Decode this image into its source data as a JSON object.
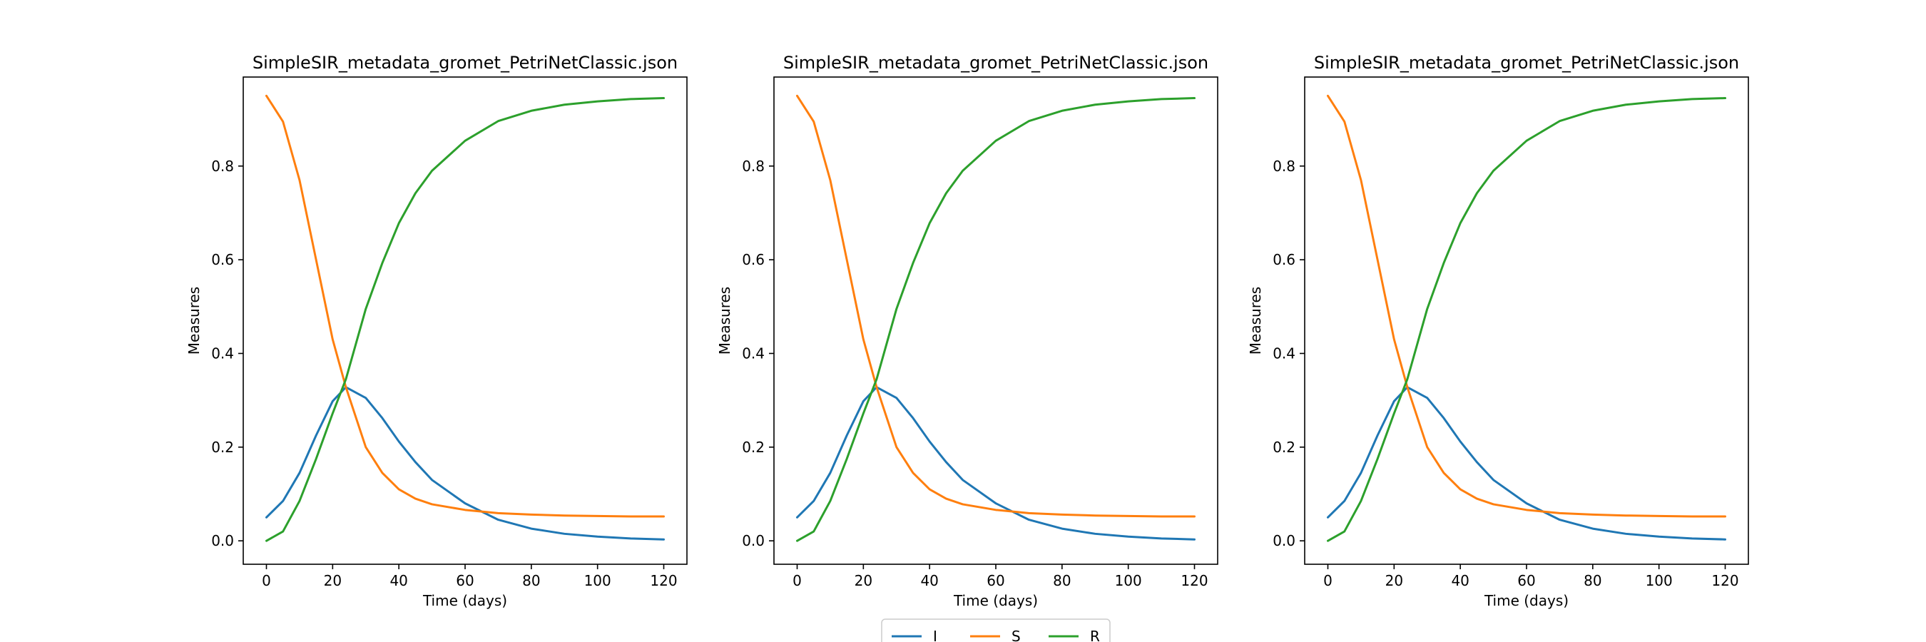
{
  "legend": {
    "placement": "bottom-center",
    "entries": [
      {
        "label": "I",
        "color": "#1f77b4"
      },
      {
        "label": "S",
        "color": "#ff7f0e"
      },
      {
        "label": "R",
        "color": "#2ca02c"
      }
    ]
  },
  "chart_data": [
    {
      "type": "line",
      "title": "SimpleSIR_metadata_gromet_PetriNetClassic.json",
      "xlabel": "Time (days)",
      "ylabel": "Measures",
      "xlim": [
        -7,
        127
      ],
      "ylim": [
        -0.05,
        0.99
      ],
      "xticks": [
        0,
        20,
        40,
        60,
        80,
        100,
        120
      ],
      "yticks": [
        0.0,
        0.2,
        0.4,
        0.6,
        0.8
      ],
      "grid": false,
      "x": [
        0,
        5,
        10,
        15,
        20,
        24,
        30,
        35,
        40,
        45,
        50,
        60,
        70,
        80,
        90,
        100,
        110,
        120
      ],
      "series": [
        {
          "name": "I",
          "color": "#1f77b4",
          "values": [
            0.05,
            0.085,
            0.145,
            0.225,
            0.298,
            0.328,
            0.305,
            0.262,
            0.212,
            0.168,
            0.13,
            0.08,
            0.045,
            0.026,
            0.015,
            0.009,
            0.005,
            0.003
          ]
        },
        {
          "name": "S",
          "color": "#ff7f0e",
          "values": [
            0.95,
            0.895,
            0.77,
            0.6,
            0.43,
            0.328,
            0.2,
            0.145,
            0.11,
            0.09,
            0.078,
            0.066,
            0.059,
            0.056,
            0.054,
            0.053,
            0.052,
            0.052
          ]
        },
        {
          "name": "R",
          "color": "#2ca02c",
          "values": [
            0.0,
            0.02,
            0.085,
            0.175,
            0.272,
            0.345,
            0.495,
            0.593,
            0.678,
            0.742,
            0.79,
            0.854,
            0.896,
            0.918,
            0.931,
            0.938,
            0.943,
            0.945
          ]
        }
      ]
    },
    {
      "type": "line",
      "title": "SimpleSIR_metadata_gromet_PetriNetClassic.json",
      "xlabel": "Time (days)",
      "ylabel": "Measures",
      "xlim": [
        -7,
        127
      ],
      "ylim": [
        -0.05,
        0.99
      ],
      "xticks": [
        0,
        20,
        40,
        60,
        80,
        100,
        120
      ],
      "yticks": [
        0.0,
        0.2,
        0.4,
        0.6,
        0.8
      ],
      "grid": false,
      "x": [
        0,
        5,
        10,
        15,
        20,
        24,
        30,
        35,
        40,
        45,
        50,
        60,
        70,
        80,
        90,
        100,
        110,
        120
      ],
      "series": [
        {
          "name": "I",
          "color": "#1f77b4",
          "values": [
            0.05,
            0.085,
            0.145,
            0.225,
            0.298,
            0.328,
            0.305,
            0.262,
            0.212,
            0.168,
            0.13,
            0.08,
            0.045,
            0.026,
            0.015,
            0.009,
            0.005,
            0.003
          ]
        },
        {
          "name": "S",
          "color": "#ff7f0e",
          "values": [
            0.95,
            0.895,
            0.77,
            0.6,
            0.43,
            0.328,
            0.2,
            0.145,
            0.11,
            0.09,
            0.078,
            0.066,
            0.059,
            0.056,
            0.054,
            0.053,
            0.052,
            0.052
          ]
        },
        {
          "name": "R",
          "color": "#2ca02c",
          "values": [
            0.0,
            0.02,
            0.085,
            0.175,
            0.272,
            0.345,
            0.495,
            0.593,
            0.678,
            0.742,
            0.79,
            0.854,
            0.896,
            0.918,
            0.931,
            0.938,
            0.943,
            0.945
          ]
        }
      ]
    },
    {
      "type": "line",
      "title": "SimpleSIR_metadata_gromet_PetriNetClassic.json",
      "xlabel": "Time (days)",
      "ylabel": "Measures",
      "xlim": [
        -7,
        127
      ],
      "ylim": [
        -0.05,
        0.99
      ],
      "xticks": [
        0,
        20,
        40,
        60,
        80,
        100,
        120
      ],
      "yticks": [
        0.0,
        0.2,
        0.4,
        0.6,
        0.8
      ],
      "grid": false,
      "x": [
        0,
        5,
        10,
        15,
        20,
        24,
        30,
        35,
        40,
        45,
        50,
        60,
        70,
        80,
        90,
        100,
        110,
        120
      ],
      "series": [
        {
          "name": "I",
          "color": "#1f77b4",
          "values": [
            0.05,
            0.085,
            0.145,
            0.225,
            0.298,
            0.328,
            0.305,
            0.262,
            0.212,
            0.168,
            0.13,
            0.08,
            0.045,
            0.026,
            0.015,
            0.009,
            0.005,
            0.003
          ]
        },
        {
          "name": "S",
          "color": "#ff7f0e",
          "values": [
            0.95,
            0.895,
            0.77,
            0.6,
            0.43,
            0.328,
            0.2,
            0.145,
            0.11,
            0.09,
            0.078,
            0.066,
            0.059,
            0.056,
            0.054,
            0.053,
            0.052,
            0.052
          ]
        },
        {
          "name": "R",
          "color": "#2ca02c",
          "values": [
            0.0,
            0.02,
            0.085,
            0.175,
            0.272,
            0.345,
            0.495,
            0.593,
            0.678,
            0.742,
            0.79,
            0.854,
            0.896,
            0.918,
            0.931,
            0.938,
            0.943,
            0.945
          ]
        }
      ]
    }
  ]
}
